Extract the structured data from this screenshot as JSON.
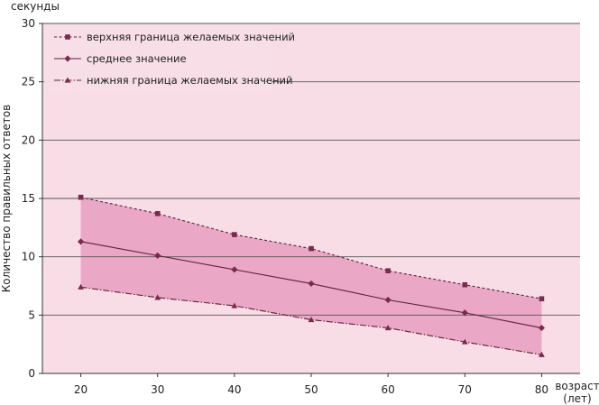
{
  "chart_data": {
    "type": "line",
    "ylabel_top": "секунды",
    "ylabel": "Количество правильных ответов",
    "xlabel_line1": "возраст",
    "xlabel_line2": "(лет)",
    "x": [
      20,
      30,
      40,
      50,
      60,
      70,
      80
    ],
    "xlim": [
      15,
      85
    ],
    "ylim": [
      0,
      30
    ],
    "yticks": [
      0,
      5,
      10,
      15,
      20,
      25,
      30
    ],
    "grid": true,
    "legend_position": "top-left",
    "band_color": "#e89ec0",
    "background_color": "#f8dde6",
    "series": [
      {
        "name": "верхняя граница желаемых значений",
        "style": "dashed",
        "marker": "square",
        "values": [
          15.1,
          13.7,
          11.9,
          10.7,
          8.8,
          7.6,
          6.4
        ]
      },
      {
        "name": "среднее значение",
        "style": "solid",
        "marker": "diamond",
        "values": [
          11.3,
          10.1,
          8.9,
          7.7,
          6.3,
          5.2,
          3.9
        ]
      },
      {
        "name": "нижняя граница желаемых значений",
        "style": "dash-dot",
        "marker": "triangle",
        "values": [
          7.4,
          6.5,
          5.8,
          4.6,
          3.9,
          2.7,
          1.6
        ]
      }
    ]
  }
}
